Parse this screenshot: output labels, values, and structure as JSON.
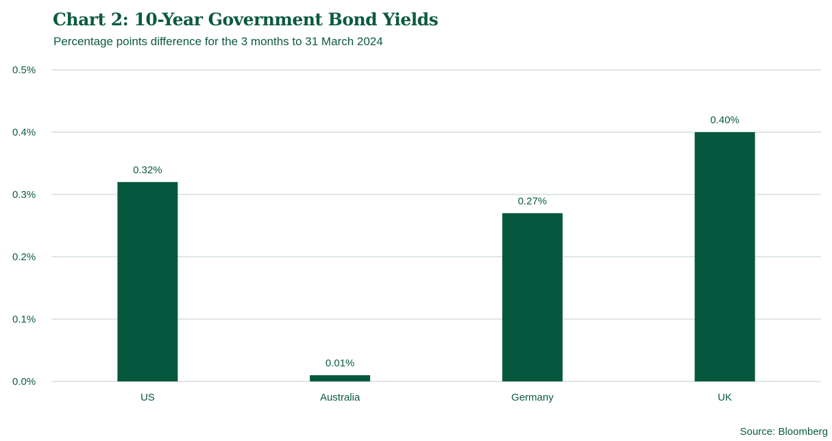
{
  "header": {
    "title": "Chart 2: 10-Year Government Bond Yields",
    "subtitle": "Percentage points difference for the 3 months to 31 March 2024"
  },
  "footer": {
    "source": "Source: Bloomberg"
  },
  "colors": {
    "bar": "#05583d",
    "text": "#0b5a40",
    "grid": "#c9d8d3"
  },
  "chart_data": {
    "type": "bar",
    "title": "Chart 2: 10-Year Government Bond Yields",
    "subtitle": "Percentage points difference for the 3 months to 31 March 2024",
    "categories": [
      "US",
      "Australia",
      "Germany",
      "UK"
    ],
    "values": [
      0.32,
      0.01,
      0.27,
      0.4
    ],
    "data_labels": [
      "0.32%",
      "0.01%",
      "0.27%",
      "0.40%"
    ],
    "y_ticks": [
      0.0,
      0.1,
      0.2,
      0.3,
      0.4,
      0.5
    ],
    "y_tick_labels": [
      "0.0%",
      "0.1%",
      "0.2%",
      "0.3%",
      "0.4%",
      "0.5%"
    ],
    "ylim": [
      0,
      0.5
    ],
    "xlabel": "",
    "ylabel": "",
    "grid": true,
    "legend": "none"
  }
}
